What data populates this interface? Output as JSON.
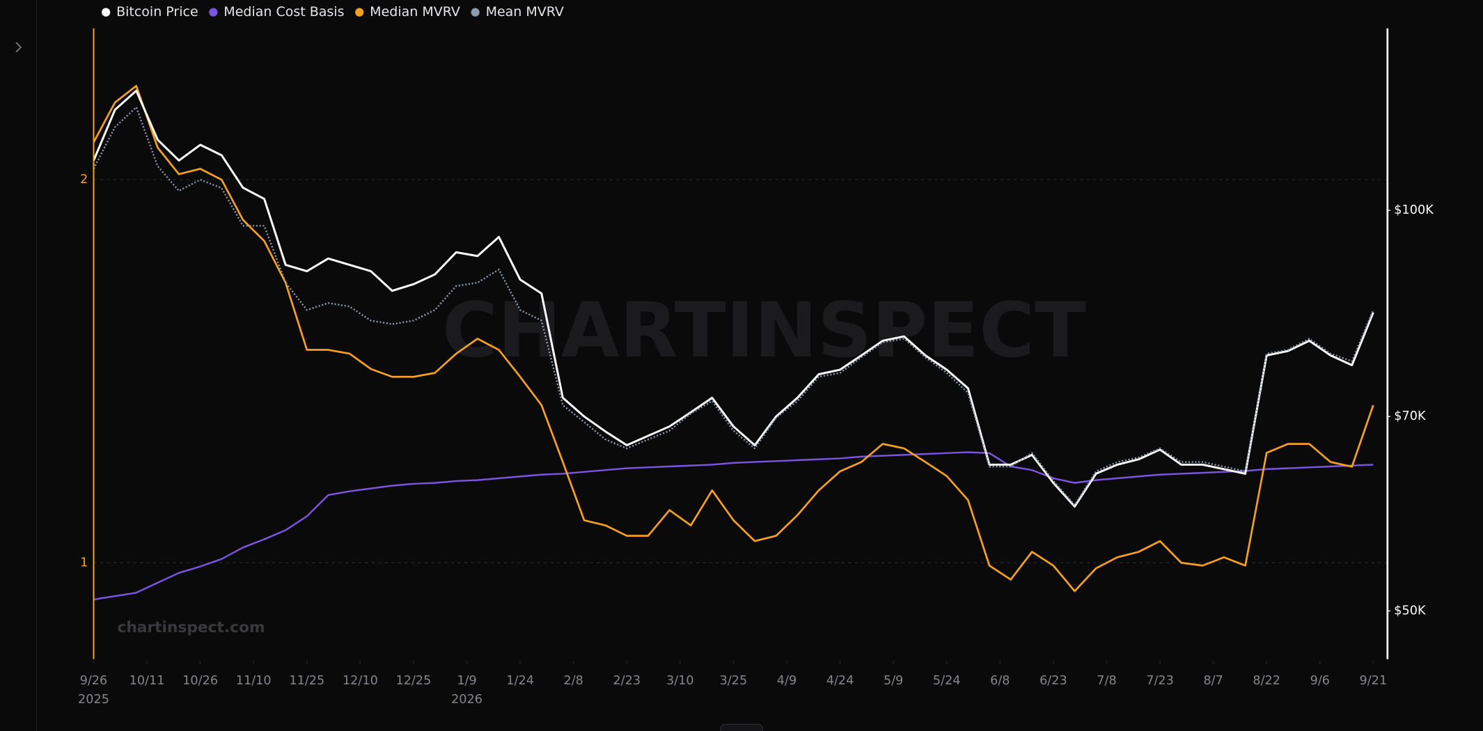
{
  "chart_data": {
    "type": "line",
    "watermark": "CHARTINSPECT",
    "source": "chartinspect.com",
    "x": [
      "2025-09-26",
      "2025-10-02",
      "2025-10-08",
      "2025-10-14",
      "2025-10-20",
      "2025-10-26",
      "2025-11-01",
      "2025-11-07",
      "2025-11-13",
      "2025-11-19",
      "2025-11-25",
      "2025-12-01",
      "2025-12-07",
      "2025-12-13",
      "2025-12-19",
      "2025-12-25",
      "2025-12-31",
      "2026-01-06",
      "2026-01-12",
      "2026-01-18",
      "2026-01-24",
      "2026-01-30",
      "2026-02-05",
      "2026-02-11",
      "2026-02-17",
      "2026-02-23",
      "2026-03-01",
      "2026-03-07",
      "2026-03-13",
      "2026-03-19",
      "2026-03-25",
      "2026-03-31",
      "2026-04-06",
      "2026-04-12",
      "2026-04-18",
      "2026-04-24",
      "2026-04-30",
      "2026-05-06",
      "2026-05-12",
      "2026-05-18",
      "2026-05-24",
      "2026-05-30",
      "2026-06-05",
      "2026-06-11",
      "2026-06-17",
      "2026-06-23",
      "2026-06-29",
      "2026-07-05",
      "2026-07-11",
      "2026-07-17",
      "2026-07-23",
      "2026-07-29",
      "2026-08-04",
      "2026-08-10",
      "2026-08-16",
      "2026-08-22",
      "2026-08-28",
      "2026-09-03",
      "2026-09-09",
      "2026-09-15",
      "2026-09-21"
    ],
    "xlim": [
      "2025-09-26",
      "2026-09-25"
    ],
    "xticks": [
      {
        "value": "2025-09-26",
        "label": "9/26"
      },
      {
        "value": "2025-10-11",
        "label": "10/11"
      },
      {
        "value": "2025-10-26",
        "label": "10/26"
      },
      {
        "value": "2025-11-10",
        "label": "11/10"
      },
      {
        "value": "2025-11-25",
        "label": "11/25"
      },
      {
        "value": "2025-12-10",
        "label": "12/10"
      },
      {
        "value": "2025-12-25",
        "label": "12/25"
      },
      {
        "value": "2026-01-09",
        "label": "1/9"
      },
      {
        "value": "2026-01-24",
        "label": "1/24"
      },
      {
        "value": "2026-02-08",
        "label": "2/8"
      },
      {
        "value": "2026-02-23",
        "label": "2/23"
      },
      {
        "value": "2026-03-10",
        "label": "3/10"
      },
      {
        "value": "2026-03-25",
        "label": "3/25"
      },
      {
        "value": "2026-04-09",
        "label": "4/9"
      },
      {
        "value": "2026-04-24",
        "label": "4/24"
      },
      {
        "value": "2026-05-09",
        "label": "5/9"
      },
      {
        "value": "2026-05-24",
        "label": "5/24"
      },
      {
        "value": "2026-06-08",
        "label": "6/8"
      },
      {
        "value": "2026-06-23",
        "label": "6/23"
      },
      {
        "value": "2026-07-08",
        "label": "7/8"
      },
      {
        "value": "2026-07-23",
        "label": "7/23"
      },
      {
        "value": "2026-08-07",
        "label": "8/7"
      },
      {
        "value": "2026-08-22",
        "label": "8/22"
      },
      {
        "value": "2026-09-06",
        "label": "9/6"
      },
      {
        "value": "2026-09-21",
        "label": "9/21"
      }
    ],
    "year_labels": [
      {
        "value": "2025-09-26",
        "label": "2025"
      },
      {
        "value": "2026-01-09",
        "label": "2026"
      }
    ],
    "ylim": [
      0.84,
      2.63
    ],
    "yticks": [
      1,
      2
    ],
    "ylog": true,
    "y_color": "#f5a020",
    "y2lim": [
      46000,
      137000
    ],
    "y2ticks": [
      {
        "value": 50000,
        "label": "$50K"
      },
      {
        "value": 70000,
        "label": "$70K"
      },
      {
        "value": 100000,
        "label": "$100K"
      }
    ],
    "y2log": true,
    "y2_color": "#ffffff",
    "grid": true,
    "legend": "top-left",
    "series": [
      {
        "name": "Bitcoin Price",
        "color": "#ffffff",
        "axis": "y2",
        "values": [
          109000,
          119000,
          123000,
          113000,
          109000,
          112000,
          110000,
          104000,
          102000,
          91000,
          90000,
          92000,
          91000,
          90000,
          87000,
          88000,
          89500,
          93000,
          92400,
          95500,
          88700,
          86600,
          72300,
          70000,
          68200,
          66600,
          67700,
          68800,
          70500,
          72300,
          68800,
          66600,
          70000,
          72300,
          75300,
          75900,
          77800,
          79800,
          80400,
          77800,
          75900,
          73500,
          64400,
          64400,
          65500,
          62400,
          59900,
          63400,
          64400,
          65000,
          66100,
          64400,
          64400,
          63900,
          63400,
          77800,
          78400,
          79800,
          77800,
          76500,
          83800
        ]
      },
      {
        "name": "Median Cost Basis",
        "color": "#7b55e0",
        "axis": "y2",
        "values": [
          51000,
          51300,
          51600,
          52500,
          53400,
          54000,
          54700,
          55800,
          56600,
          57500,
          58900,
          61100,
          61500,
          61800,
          62100,
          62300,
          62400,
          62600,
          62700,
          62900,
          63100,
          63300,
          63400,
          63600,
          63800,
          64000,
          64100,
          64200,
          64300,
          64400,
          64600,
          64700,
          64800,
          64900,
          65000,
          65100,
          65300,
          65400,
          65500,
          65600,
          65700,
          65800,
          65700,
          64200,
          63800,
          62900,
          62400,
          62700,
          62900,
          63100,
          63300,
          63400,
          63500,
          63600,
          63700,
          63900,
          64000,
          64100,
          64200,
          64300,
          64400
        ]
      },
      {
        "name": "Median MVRV",
        "color": "#f5a020",
        "axis": "y",
        "values": [
          2.14,
          2.3,
          2.37,
          2.12,
          2.02,
          2.04,
          2.0,
          1.86,
          1.79,
          1.66,
          1.47,
          1.47,
          1.46,
          1.42,
          1.4,
          1.4,
          1.41,
          1.46,
          1.5,
          1.47,
          1.4,
          1.33,
          1.2,
          1.08,
          1.07,
          1.05,
          1.05,
          1.1,
          1.07,
          1.14,
          1.08,
          1.04,
          1.05,
          1.09,
          1.14,
          1.18,
          1.2,
          1.24,
          1.23,
          1.2,
          1.17,
          1.12,
          0.995,
          0.97,
          1.02,
          0.995,
          0.95,
          0.99,
          1.01,
          1.02,
          1.04,
          1.0,
          0.995,
          1.01,
          0.995,
          1.22,
          1.24,
          1.24,
          1.2,
          1.19,
          1.33
        ]
      },
      {
        "name": "Mean MVRV",
        "color": "#8a9bb0",
        "axis": "y",
        "values": [
          2.04,
          2.2,
          2.28,
          2.05,
          1.96,
          2.0,
          1.97,
          1.84,
          1.84,
          1.66,
          1.58,
          1.6,
          1.59,
          1.55,
          1.54,
          1.55,
          1.58,
          1.65,
          1.66,
          1.7,
          1.58,
          1.55,
          1.33,
          1.29,
          1.25,
          1.23,
          1.25,
          1.27,
          1.31,
          1.34,
          1.27,
          1.23,
          1.3,
          1.34,
          1.4,
          1.41,
          1.45,
          1.49,
          1.5,
          1.45,
          1.41,
          1.36,
          1.19,
          1.19,
          1.22,
          1.16,
          1.11,
          1.18,
          1.2,
          1.21,
          1.23,
          1.2,
          1.2,
          1.19,
          1.18,
          1.46,
          1.47,
          1.5,
          1.46,
          1.44,
          1.58
        ]
      }
    ]
  }
}
